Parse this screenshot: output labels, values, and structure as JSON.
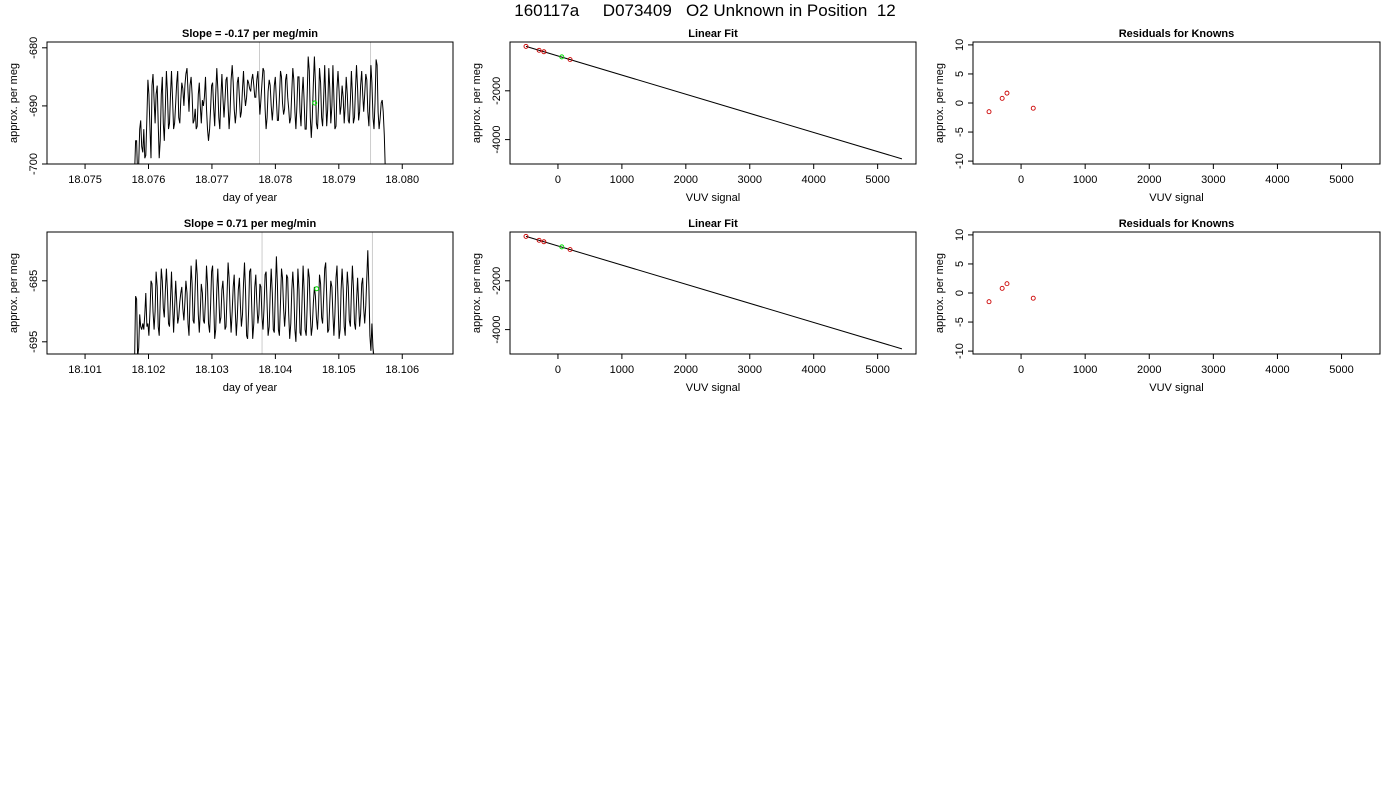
{
  "title": "160117a     D073409   O2 Unknown in Position  12",
  "colors": {
    "line": "#000000",
    "known": "#cc0000",
    "unknown": "#00dd00",
    "vline": "#cccccc"
  },
  "chart_data": [
    {
      "type": "line",
      "title": "Slope =  -0.17  per meg/min",
      "xlabel": "day of year",
      "ylabel": "approx. per meg",
      "xlim": [
        18.0744,
        18.0808
      ],
      "ylim": [
        -700,
        -679
      ],
      "xticks": [
        "18.075",
        "18.076",
        "18.077",
        "18.078",
        "18.079",
        "18.080"
      ],
      "yticks": [
        "-700",
        "-690",
        "-680"
      ],
      "vlines": [
        18.07775,
        18.0795
      ],
      "unknown_point": {
        "x": 18.07862,
        "y": -689.5
      },
      "x_start": 18.07578,
      "x_step": 1.62e-05,
      "y": [
        -702,
        -696,
        -696,
        -702,
        -700,
        -694,
        -692.5,
        -697,
        -698,
        -694,
        -699,
        -698.5,
        -692,
        -685.5,
        -688,
        -694,
        -699,
        -686.5,
        -684.5,
        -689,
        -693,
        -688,
        -686.5,
        -693,
        -699,
        -696,
        -688,
        -685,
        -693,
        -696,
        -690,
        -684,
        -687.5,
        -694,
        -693,
        -688,
        -684,
        -689,
        -694,
        -693,
        -689.5,
        -686,
        -684,
        -692,
        -693,
        -689,
        -686,
        -687,
        -690,
        -686.5,
        -684.5,
        -683.5,
        -687.5,
        -691,
        -686.5,
        -685,
        -688,
        -693,
        -692.5,
        -690.5,
        -694,
        -693.5,
        -688,
        -686,
        -690,
        -693,
        -689,
        -690,
        -688.5,
        -685,
        -690.5,
        -694,
        -696,
        -694,
        -690.5,
        -686.5,
        -686,
        -690.5,
        -693.5,
        -688,
        -683.5,
        -687,
        -692,
        -694,
        -688.5,
        -684.5,
        -688.5,
        -692,
        -689,
        -685.5,
        -685,
        -690,
        -694,
        -691,
        -685.5,
        -683,
        -686,
        -690.5,
        -693,
        -691,
        -686,
        -685,
        -688.5,
        -692,
        -691,
        -687,
        -684,
        -688,
        -690,
        -688.5,
        -685.5,
        -686,
        -687,
        -687.5,
        -685.5,
        -684.5,
        -686.5,
        -688.5,
        -688.5,
        -685.5,
        -684,
        -688,
        -691.5,
        -689,
        -686,
        -683.5,
        -684,
        -690.5,
        -694,
        -692,
        -687.5,
        -685.5,
        -686.5,
        -690,
        -692.5,
        -690,
        -686.5,
        -685,
        -689,
        -692.5,
        -692.5,
        -688.5,
        -684,
        -685,
        -689.5,
        -691.5,
        -690.5,
        -685.5,
        -684.5,
        -688.5,
        -690.5,
        -693,
        -692,
        -687.5,
        -683.5,
        -685.5,
        -691,
        -694,
        -690,
        -685,
        -685,
        -691,
        -693.5,
        -688,
        -685,
        -689,
        -694,
        -694,
        -688,
        -681.5,
        -684,
        -692,
        -695.5,
        -692,
        -686,
        -681.5,
        -686,
        -693,
        -694,
        -690,
        -683.5,
        -686,
        -692,
        -693.5,
        -689,
        -683,
        -688.5,
        -693.5,
        -690.5,
        -683.5,
        -687,
        -693,
        -690,
        -683,
        -688.5,
        -694,
        -693.5,
        -687,
        -684,
        -687.5,
        -691.5,
        -690,
        -686.5,
        -688.5,
        -693,
        -690,
        -685,
        -688,
        -692.5,
        -693,
        -689,
        -684,
        -688,
        -693,
        -692,
        -687,
        -683,
        -687,
        -692.5,
        -691,
        -686.5,
        -684,
        -688,
        -691,
        -688,
        -684.5,
        -685.5,
        -691,
        -693.5,
        -688.5,
        -683,
        -686,
        -692,
        -694,
        -689.5,
        -682,
        -683,
        -691,
        -694,
        -692,
        -689.5,
        -689,
        -691,
        -695,
        -701
      ],
      "fit_x": [],
      "known": []
    },
    {
      "type": "scatter",
      "title": "Linear Fit",
      "xlabel": "VUV signal",
      "ylabel": "approx. per meg",
      "xlim": [
        -750,
        5600
      ],
      "ylim": [
        -5000,
        0
      ],
      "xticks": [
        0,
        1000,
        2000,
        3000,
        4000,
        5000
      ],
      "yticks": [
        -4000,
        -2000
      ],
      "fit_line": {
        "x": [
          -500,
          5380
        ],
        "y": [
          -180,
          -4790
        ]
      },
      "known": [
        {
          "x": -500,
          "y": -180
        },
        {
          "x": -295,
          "y": -340
        },
        {
          "x": -220,
          "y": -400
        },
        {
          "x": 190,
          "y": -720
        }
      ],
      "unknown": [
        {
          "x": 60,
          "y": -610
        }
      ]
    },
    {
      "type": "scatter",
      "title": "Residuals for Knowns",
      "xlabel": "VUV signal",
      "ylabel": "approx. per meg",
      "xlim": [
        -750,
        5600
      ],
      "ylim": [
        -10.5,
        10.5
      ],
      "xticks": [
        0,
        1000,
        2000,
        3000,
        4000,
        5000
      ],
      "yticks": [
        -10,
        -5,
        0,
        5,
        10
      ],
      "known": [
        {
          "x": -500,
          "y": -1.5
        },
        {
          "x": -295,
          "y": 0.8
        },
        {
          "x": -220,
          "y": 1.7
        },
        {
          "x": 190,
          "y": -0.9
        }
      ]
    },
    {
      "type": "line",
      "title": "Slope =  0.71  per meg/min",
      "xlabel": "day of year",
      "ylabel": "approx. per meg",
      "xlim": [
        18.1004,
        18.1068
      ],
      "ylim": [
        -697,
        -677
      ],
      "xticks": [
        "18.101",
        "18.102",
        "18.103",
        "18.104",
        "18.105",
        "18.106"
      ],
      "yticks": [
        "-695",
        "-685"
      ],
      "vlines": [
        18.10379,
        18.10553
      ],
      "unknown_point": {
        "x": 18.10465,
        "y": -686.3
      },
      "x_start": 18.10178,
      "x_step": 1.62e-05,
      "y": [
        -699,
        -687.5,
        -688,
        -697.5,
        -696,
        -690.5,
        -692.5,
        -693,
        -692,
        -693,
        -690.5,
        -687,
        -692.5,
        -692,
        -694,
        -690,
        -685,
        -685.5,
        -690,
        -693,
        -690,
        -683.5,
        -686,
        -692.5,
        -694,
        -688.5,
        -683,
        -685,
        -689.5,
        -691,
        -686.5,
        -683,
        -686.5,
        -692,
        -692.5,
        -688,
        -683.5,
        -689,
        -693.5,
        -689.5,
        -685,
        -688.5,
        -692,
        -691,
        -688.5,
        -687,
        -686,
        -689.5,
        -691.5,
        -688.5,
        -685,
        -687,
        -692,
        -694,
        -688,
        -682.5,
        -685.5,
        -691.5,
        -692,
        -686,
        -681.5,
        -684,
        -690.5,
        -693.5,
        -690,
        -685.5,
        -687,
        -691.5,
        -692,
        -688,
        -682.5,
        -685.5,
        -692,
        -693.5,
        -689,
        -683.5,
        -682.5,
        -688.5,
        -694.5,
        -693,
        -686.5,
        -683,
        -687.5,
        -692,
        -691,
        -686.5,
        -685,
        -688.5,
        -693,
        -692.5,
        -687.5,
        -682,
        -684.5,
        -690,
        -693.5,
        -690,
        -686,
        -684,
        -690,
        -694,
        -691,
        -686.5,
        -684.5,
        -689,
        -692.5,
        -690.5,
        -685.5,
        -682,
        -686.5,
        -694,
        -694.5,
        -690,
        -683.5,
        -683,
        -689,
        -694.5,
        -692,
        -686,
        -684,
        -688.5,
        -692,
        -690.5,
        -685.5,
        -686,
        -691,
        -693,
        -689.5,
        -684,
        -683.5,
        -689,
        -694,
        -692.5,
        -687,
        -683,
        -687,
        -693,
        -693.5,
        -687,
        -681,
        -685.5,
        -693,
        -694,
        -688.5,
        -683,
        -684.5,
        -689.5,
        -692.5,
        -690,
        -684,
        -684.5,
        -690.5,
        -694.5,
        -692,
        -686.5,
        -683.5,
        -686.5,
        -693,
        -695,
        -689.5,
        -683,
        -686.5,
        -693.5,
        -694,
        -688,
        -682.5,
        -686.5,
        -693,
        -694,
        -689,
        -683,
        -684.5,
        -690.5,
        -694,
        -692.5,
        -688.5,
        -686,
        -687.5,
        -691,
        -693,
        -689.5,
        -684,
        -685.5,
        -691,
        -692,
        -688,
        -683,
        -682,
        -687.5,
        -693.5,
        -693,
        -688.5,
        -685,
        -686,
        -690.5,
        -694,
        -690.5,
        -684.5,
        -682.5,
        -688,
        -694.5,
        -693,
        -686.5,
        -683,
        -686.5,
        -692.5,
        -694,
        -688.5,
        -683.5,
        -686,
        -691.5,
        -692.5,
        -687,
        -682.5,
        -686,
        -692,
        -693,
        -688.5,
        -684.5,
        -688.5,
        -692.5,
        -690.5,
        -685.5,
        -684.5,
        -689.5,
        -692,
        -689,
        -684.5,
        -680,
        -686,
        -694,
        -696.5,
        -692,
        -696,
        -697.5
      ],
      "fit_x": [],
      "known": []
    },
    {
      "type": "scatter",
      "title": "Linear Fit",
      "xlabel": "VUV signal",
      "ylabel": "approx. per meg",
      "xlim": [
        -750,
        5600
      ],
      "ylim": [
        -5000,
        0
      ],
      "xticks": [
        0,
        1000,
        2000,
        3000,
        4000,
        5000
      ],
      "yticks": [
        -4000,
        -2000
      ],
      "fit_line": {
        "x": [
          -500,
          5380
        ],
        "y": [
          -180,
          -4790
        ]
      },
      "known": [
        {
          "x": -500,
          "y": -180
        },
        {
          "x": -295,
          "y": -340
        },
        {
          "x": -220,
          "y": -400
        },
        {
          "x": 190,
          "y": -720
        }
      ],
      "unknown": [
        {
          "x": 60,
          "y": -610
        }
      ]
    },
    {
      "type": "scatter",
      "title": "Residuals for Knowns",
      "xlabel": "VUV signal",
      "ylabel": "approx. per meg",
      "xlim": [
        -750,
        5600
      ],
      "ylim": [
        -10.5,
        10.5
      ],
      "xticks": [
        0,
        1000,
        2000,
        3000,
        4000,
        5000
      ],
      "yticks": [
        -10,
        -5,
        0,
        5,
        10
      ],
      "known": [
        {
          "x": -500,
          "y": -1.5
        },
        {
          "x": -295,
          "y": 0.8
        },
        {
          "x": -220,
          "y": 1.6
        },
        {
          "x": 190,
          "y": -0.9
        }
      ]
    }
  ]
}
